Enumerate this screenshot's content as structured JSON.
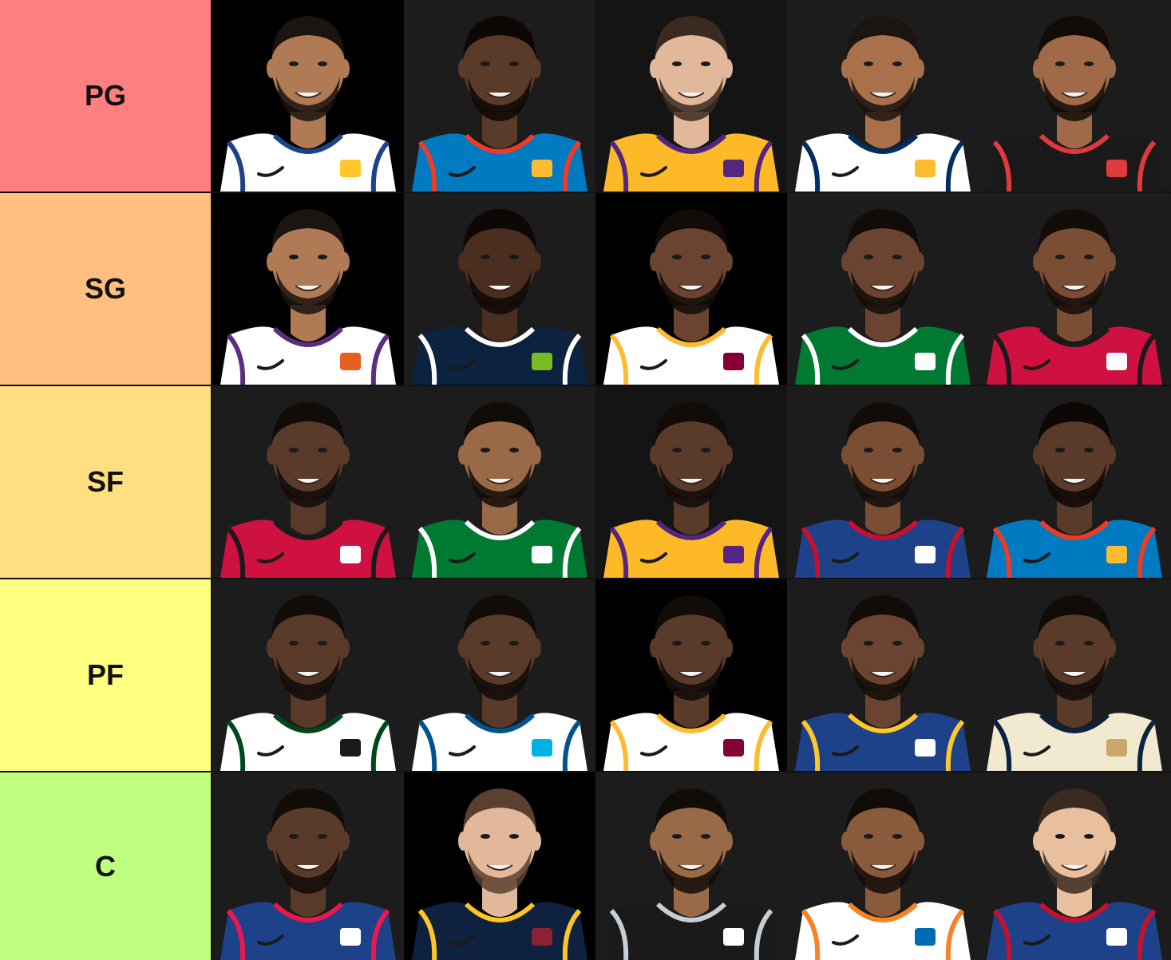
{
  "tiers": [
    {
      "label": "PG",
      "color": "#ff7f7f",
      "players": [
        {
          "name": "player",
          "jersey": "#ffffff",
          "trim": "#1d428a",
          "accent": "#ffc72c",
          "skin": "#b07a55",
          "bg": "#000000",
          "hair": "#1b1410"
        },
        {
          "name": "player",
          "jersey": "#007ac1",
          "trim": "#ef3b24",
          "accent": "#fdbb30",
          "skin": "#5a3a28",
          "bg": "#1c1c1c",
          "hair": "#0d0806"
        },
        {
          "name": "player",
          "jersey": "#fdb927",
          "trim": "#552583",
          "accent": "#552583",
          "skin": "#e2b89a",
          "bg": "#141414",
          "hair": "#3a2a20"
        },
        {
          "name": "player",
          "jersey": "#ffffff",
          "trim": "#002d62",
          "accent": "#fdbb30",
          "skin": "#a8714c",
          "bg": "#1c1c1c",
          "hair": "#1b1410"
        },
        {
          "name": "player",
          "jersey": "#1a1a1a",
          "trim": "#e03a3e",
          "accent": "#e03a3e",
          "skin": "#a06a48",
          "bg": "#1c1c1c",
          "hair": "#120c08"
        }
      ]
    },
    {
      "label": "SG",
      "color": "#ffbf7f",
      "players": [
        {
          "name": "player",
          "jersey": "#ffffff",
          "trim": "#5a2d81",
          "accent": "#e56020",
          "skin": "#b07a55",
          "bg": "#000000",
          "hair": "#1b1410"
        },
        {
          "name": "player",
          "jersey": "#0c2340",
          "trim": "#ffffff",
          "accent": "#78be20",
          "skin": "#4a2e20",
          "bg": "#1c1c1c",
          "hair": "#0d0806"
        },
        {
          "name": "player",
          "jersey": "#ffffff",
          "trim": "#fdbb30",
          "accent": "#860038",
          "skin": "#6a4430",
          "bg": "#000000",
          "hair": "#120c08"
        },
        {
          "name": "player",
          "jersey": "#007a33",
          "trim": "#ffffff",
          "accent": "#ffffff",
          "skin": "#6a4430",
          "bg": "#1c1c1c",
          "hair": "#120c08"
        },
        {
          "name": "player",
          "jersey": "#ce1141",
          "trim": "#1a1a1a",
          "accent": "#ffffff",
          "skin": "#7a4e35",
          "bg": "#1c1c1c",
          "hair": "#140c08"
        }
      ]
    },
    {
      "label": "SF",
      "color": "#ffdf7f",
      "players": [
        {
          "name": "player",
          "jersey": "#ce1141",
          "trim": "#1a1a1a",
          "accent": "#ffffff",
          "skin": "#5a3a28",
          "bg": "#1c1c1c",
          "hair": "#120c08"
        },
        {
          "name": "player",
          "jersey": "#007a33",
          "trim": "#ffffff",
          "accent": "#ffffff",
          "skin": "#9a6a48",
          "bg": "#1c1c1c",
          "hair": "#120c08"
        },
        {
          "name": "player",
          "jersey": "#fdb927",
          "trim": "#552583",
          "accent": "#552583",
          "skin": "#5a3a28",
          "bg": "#141414",
          "hair": "#120c08"
        },
        {
          "name": "player",
          "jersey": "#1d428a",
          "trim": "#c8102e",
          "accent": "#ffffff",
          "skin": "#7a4e35",
          "bg": "#1c1c1c",
          "hair": "#120c08"
        },
        {
          "name": "player",
          "jersey": "#007ac1",
          "trim": "#ef3b24",
          "accent": "#fdbb30",
          "skin": "#5a3a28",
          "bg": "#1c1c1c",
          "hair": "#0d0806"
        }
      ]
    },
    {
      "label": "PF",
      "color": "#ffff7f",
      "players": [
        {
          "name": "player",
          "jersey": "#ffffff",
          "trim": "#00471b",
          "accent": "#1a1a1a",
          "skin": "#5a3a28",
          "bg": "#1c1c1c",
          "hair": "#120c08"
        },
        {
          "name": "player",
          "jersey": "#ffffff",
          "trim": "#00538c",
          "accent": "#00b2e3",
          "skin": "#5a3a28",
          "bg": "#1c1c1c",
          "hair": "#120c08"
        },
        {
          "name": "player",
          "jersey": "#ffffff",
          "trim": "#fdbb30",
          "accent": "#860038",
          "skin": "#5a3a28",
          "bg": "#000000",
          "hair": "#120c08"
        },
        {
          "name": "player",
          "jersey": "#1d428a",
          "trim": "#ffc72c",
          "accent": "#ffffff",
          "skin": "#6a4430",
          "bg": "#1c1c1c",
          "hair": "#120c08"
        },
        {
          "name": "player",
          "jersey": "#f1ead0",
          "trim": "#0c2340",
          "accent": "#c8a96a",
          "skin": "#5a3a28",
          "bg": "#1c1c1c",
          "hair": "#120c08"
        }
      ]
    },
    {
      "label": "C",
      "color": "#bfff7f",
      "players": [
        {
          "name": "player",
          "jersey": "#1d428a",
          "trim": "#ed174c",
          "accent": "#ffffff",
          "skin": "#5a3a28",
          "bg": "#1c1c1c",
          "hair": "#120c08"
        },
        {
          "name": "player",
          "jersey": "#0e2240",
          "trim": "#fec524",
          "accent": "#8b2131",
          "skin": "#e2b89a",
          "bg": "#000000",
          "hair": "#5a4030"
        },
        {
          "name": "player",
          "jersey": "#1a1a1a",
          "trim": "#c4ced4",
          "accent": "#ffffff",
          "skin": "#9a6a48",
          "bg": "#1c1c1c",
          "hair": "#120c08"
        },
        {
          "name": "player",
          "jersey": "#ffffff",
          "trim": "#f58426",
          "accent": "#006bb6",
          "skin": "#8a5a3c",
          "bg": "#1c1c1c",
          "hair": "#120c08"
        },
        {
          "name": "player",
          "jersey": "#1d428a",
          "trim": "#c8102e",
          "accent": "#ffffff",
          "skin": "#e8c0a0",
          "bg": "#1c1c1c",
          "hair": "#3a2a20"
        }
      ]
    }
  ]
}
